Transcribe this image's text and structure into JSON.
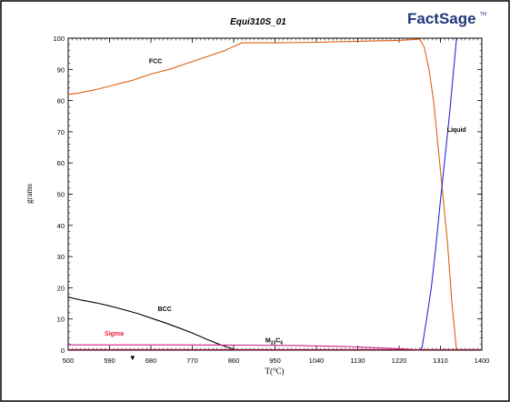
{
  "chart_data": {
    "type": "line",
    "title": "Equi310S_01",
    "logo_text": "FactSage",
    "logo_tm": "TM",
    "xlabel": "T(°C)",
    "ylabel": "grams",
    "xlim": [
      500,
      1400
    ],
    "ylim": [
      0,
      100
    ],
    "xticks": [
      500,
      590,
      680,
      770,
      860,
      950,
      1040,
      1130,
      1220,
      1310,
      1400
    ],
    "yticks": [
      0,
      10,
      20,
      30,
      40,
      50,
      60,
      70,
      80,
      90,
      100
    ],
    "grid": false,
    "legend": "none",
    "series": [
      {
        "name": "FCC",
        "color": "#e06010",
        "x": [
          500,
          520,
          560,
          600,
          640,
          680,
          720,
          760,
          800,
          840,
          878,
          950,
          1040,
          1130,
          1220,
          1265,
          1275,
          1285,
          1295,
          1305,
          1315,
          1325,
          1335,
          1345
        ],
        "y": [
          82,
          82.3,
          83.5,
          85,
          86.5,
          88.5,
          90,
          92,
          94,
          96,
          98.5,
          98.5,
          98.7,
          99,
          99.3,
          99.7,
          97,
          90,
          80,
          65,
          50,
          35,
          15,
          0
        ]
      },
      {
        "name": "Liquid",
        "color": "#2a2ad0",
        "x": [
          1260,
          1265,
          1270,
          1280,
          1290,
          1300,
          1310,
          1320,
          1330,
          1345
        ],
        "y": [
          0,
          0,
          1,
          10,
          20,
          33,
          48,
          62,
          76,
          100
        ]
      },
      {
        "name": "BCC",
        "color": "#000000",
        "x": [
          500,
          530,
          560,
          590,
          620,
          650,
          680,
          710,
          740,
          770,
          800,
          830,
          860,
          870,
          880
        ],
        "y": [
          17,
          16,
          15.2,
          14.2,
          13,
          11.8,
          10.3,
          8.8,
          7.2,
          5.5,
          3.6,
          1.8,
          0.3,
          0,
          0
        ]
      },
      {
        "name": "Sigma",
        "color": "#e8203a",
        "x": [
          500,
          1400
        ],
        "y": [
          0.15,
          0.15
        ]
      },
      {
        "name": "M23C6",
        "color": "#cc2288",
        "x": [
          500,
          600,
          700,
          800,
          900,
          1000,
          1100,
          1150,
          1200,
          1240,
          1265
        ],
        "y": [
          1.7,
          1.7,
          1.7,
          1.65,
          1.6,
          1.5,
          1.2,
          0.9,
          0.6,
          0.3,
          0
        ]
      }
    ],
    "annotations": [
      {
        "text": "FCC",
        "x": 690,
        "y": 92,
        "color": "#000000"
      },
      {
        "text": "BCC",
        "x": 710,
        "y": 12.5,
        "color": "#000000"
      },
      {
        "text": "Sigma",
        "x": 600,
        "y": 4.7,
        "color": "#e8203a"
      },
      {
        "text": "M",
        "sub1": "23",
        "mid": "C",
        "sub2": "6",
        "x": 948,
        "y": 2.5,
        "color": "#000000"
      },
      {
        "text": "Liquid",
        "x": 1345,
        "y": 70,
        "color": "#000000"
      }
    ],
    "marker": {
      "symbol": "▼",
      "x": 640
    }
  }
}
